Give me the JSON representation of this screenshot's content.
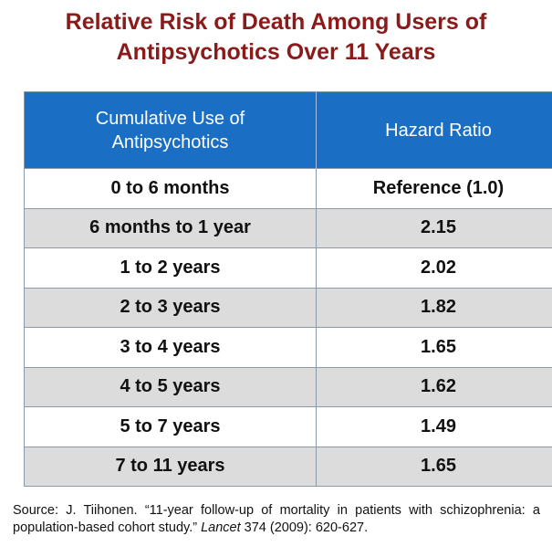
{
  "title": {
    "line1": "Relative Risk of Death Among Users of",
    "line2": "Antipsychotics Over 11 Years"
  },
  "colors": {
    "title": "#8b1a1a",
    "header_bg": "#1a6fc4",
    "header_text": "#ffffff",
    "row_alt_bg": "#dcdcdc",
    "border": "#8a9aa8"
  },
  "chart_data": {
    "type": "table",
    "title": "Relative Risk of Death Among Users of Antipsychotics Over 11 Years",
    "columns": [
      {
        "line1": "Cumulative Use of",
        "line2": "Antipsychotics"
      },
      {
        "line1": "Hazard Ratio",
        "line2": ""
      }
    ],
    "rows": [
      {
        "use": "0 to 6 months",
        "hazard": "Reference (1.0)"
      },
      {
        "use": "6 months to 1 year",
        "hazard": "2.15"
      },
      {
        "use": "1 to 2 years",
        "hazard": "2.02"
      },
      {
        "use": "2 to 3 years",
        "hazard": "1.82"
      },
      {
        "use": "3 to 4 years",
        "hazard": "1.65"
      },
      {
        "use": "4 to 5 years",
        "hazard": "1.62"
      },
      {
        "use": "5 to 7 years",
        "hazard": "1.49"
      },
      {
        "use": "7 to 11 years",
        "hazard": "1.65"
      }
    ]
  },
  "source": {
    "before_journal": "Source: J. Tiihonen. “11-year follow-up of mortality in patients with schizophrenia: a population-based cohort study.”",
    "journal": "Lancet",
    "after_journal": "374 (2009): 620-627."
  }
}
